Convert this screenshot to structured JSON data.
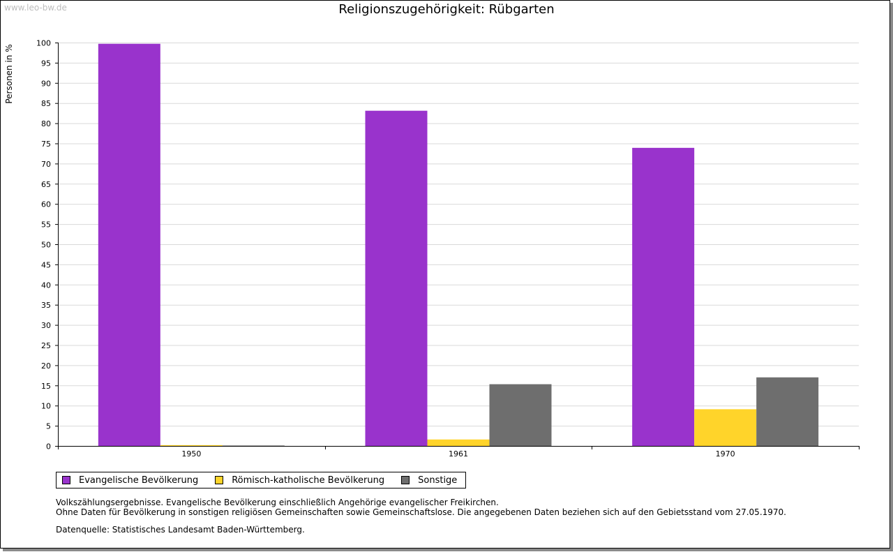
{
  "watermark": "www.leo-bw.de",
  "chart_data": {
    "type": "bar",
    "title": "Religionszugehörigkeit: Rübgarten",
    "ylabel": "Personen in %",
    "xlabel": "",
    "ylim": [
      0,
      100
    ],
    "ytick_step": 5,
    "grid": true,
    "legend_position": "bottom-left",
    "categories": [
      "1950",
      "1961",
      "1970"
    ],
    "series": [
      {
        "name": "Evangelische Bevölkerung",
        "color": "#9933cc",
        "values": [
          99.7,
          83.1,
          73.9
        ]
      },
      {
        "name": "Römisch-katholische Bevölkerung",
        "color": "#ffd42a",
        "values": [
          0.2,
          1.6,
          9.1
        ]
      },
      {
        "name": "Sonstige",
        "color": "#6e6e6e",
        "values": [
          0.1,
          15.3,
          17.0
        ]
      }
    ]
  },
  "notes": [
    "Volkszählungsergebnisse. Evangelische Bevölkerung einschließlich Angehörige evangelischer Freikirchen.",
    "Ohne Daten für Bevölkerung in sonstigen religiösen Gemeinschaften sowie Gemeinschaftslose. Die angegebenen Daten beziehen sich auf den Gebietsstand vom 27.05.1970."
  ],
  "source": "Datenquelle: Statistisches Landesamt Baden-Württemberg."
}
